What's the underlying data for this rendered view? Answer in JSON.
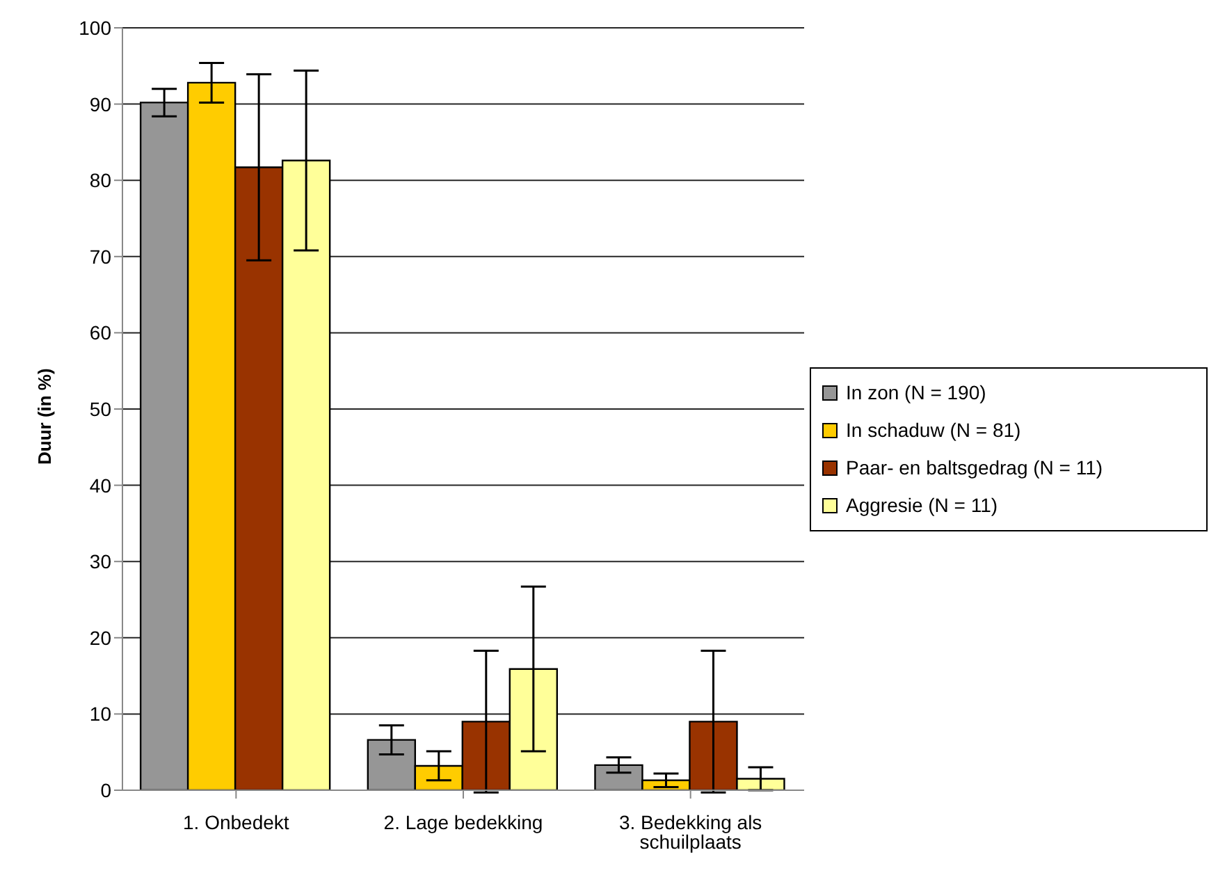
{
  "chart_data": {
    "type": "bar",
    "ylabel": "Duur (in %)",
    "categories": [
      "1. Onbedekt",
      "2. Lage bedekking",
      "3. Bedekking als schuilplaats"
    ],
    "series": [
      {
        "name": "In zon (N = 190)",
        "color": "#969696",
        "values": [
          90.2,
          6.6,
          3.3
        ],
        "errors": [
          1.8,
          1.9,
          1.0
        ]
      },
      {
        "name": "In schaduw (N = 81)",
        "color": "#ffcc00",
        "values": [
          92.8,
          3.2,
          1.3
        ],
        "errors": [
          2.6,
          1.9,
          0.9
        ]
      },
      {
        "name": "Paar- en baltsgedrag (N = 11)",
        "color": "#993300",
        "values": [
          81.7,
          9.0,
          9.0
        ],
        "errors": [
          12.2,
          9.3,
          9.3
        ]
      },
      {
        "name": "Aggresie (N = 11)",
        "color": "#ffff99",
        "values": [
          82.6,
          15.9,
          1.5
        ],
        "errors": [
          11.8,
          10.8,
          1.5
        ]
      }
    ],
    "ylim": [
      0,
      100
    ],
    "yticks": [
      0,
      10,
      20,
      30,
      40,
      50,
      60,
      70,
      80,
      90,
      100
    ],
    "grid": "y",
    "legend": "right"
  }
}
